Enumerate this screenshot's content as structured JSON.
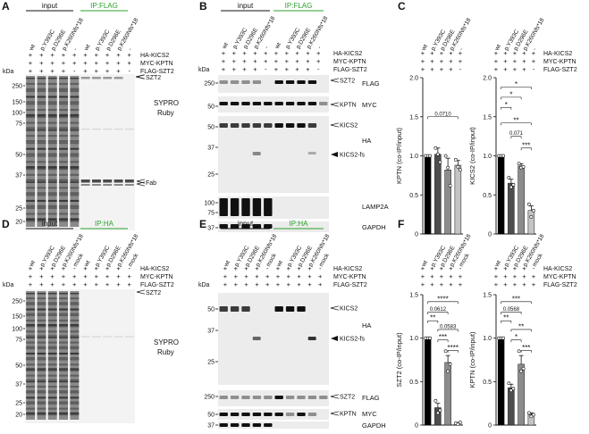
{
  "panels": {
    "A": {
      "letter": "A",
      "header_left": "input",
      "header_right": "IP:FLAG",
      "lanes": [
        "wt",
        "p.Y393C",
        "p.D296E",
        "p.K260Nfs*18",
        "-",
        "wt",
        "p.Y393C",
        "p.D296E",
        "p.K260Nfs*18",
        "-"
      ],
      "rows": [
        {
          "label": "HA-KICS2",
          "marks": [
            "+",
            "+",
            "+",
            "+",
            "+",
            "+",
            "+",
            "+",
            "+",
            "+"
          ]
        },
        {
          "label": "MYC-KPTN",
          "marks": [
            "+",
            "+",
            "+",
            "+",
            "+",
            "+",
            "+",
            "+",
            "+",
            "+"
          ]
        },
        {
          "label": "FLAG-SZT2",
          "marks": [
            "+",
            "+",
            "+",
            "+",
            "-",
            "+",
            "+",
            "+",
            "+",
            "-"
          ]
        }
      ],
      "kda": "kDa",
      "markers": [
        "250",
        "150",
        "100",
        "75",
        "50",
        "37",
        "25",
        "20"
      ],
      "band_labels": [
        "SZT2",
        "Fab"
      ],
      "stain": [
        "SYPRO",
        "Ruby"
      ]
    },
    "B": {
      "letter": "B",
      "header_left": "input",
      "header_right": "IP:FLAG",
      "lanes": [
        "wt",
        "p.Y393C",
        "p.D296E",
        "p.K260Nfs*18",
        "-",
        "wt",
        "p.Y393C",
        "p.D296E",
        "p.K260Nfs*18",
        "-"
      ],
      "rows": [
        {
          "label": "HA-KICS2",
          "marks": [
            "+",
            "+",
            "+",
            "+",
            "+",
            "+",
            "+",
            "+",
            "+",
            "+"
          ]
        },
        {
          "label": "MYC-KPTN",
          "marks": [
            "+",
            "+",
            "+",
            "+",
            "+",
            "+",
            "+",
            "+",
            "+",
            "+"
          ]
        },
        {
          "label": "FLAG-SZT2",
          "marks": [
            "+",
            "+",
            "+",
            "+",
            "-",
            "+",
            "+",
            "+",
            "+",
            "-"
          ]
        }
      ],
      "kda": "kDa",
      "blots": [
        {
          "antibody": "FLAG",
          "markers": [
            "250"
          ],
          "bands": [
            "SZT2"
          ]
        },
        {
          "antibody": "MYC",
          "markers": [
            "50"
          ],
          "bands": [
            "KPTN"
          ]
        },
        {
          "antibody": "HA",
          "markers": [
            "50",
            "37",
            "25"
          ],
          "bands": [
            "KICS2",
            "KICS2-fs"
          ]
        },
        {
          "antibody": "LAMP2A",
          "markers": [
            "100",
            "75"
          ],
          "bands": []
        },
        {
          "antibody": "GAPDH",
          "markers": [
            "37"
          ],
          "bands": []
        }
      ]
    },
    "C": {
      "letter": "C",
      "lanes": [
        "wt",
        "p.Y393C",
        "p.D296E",
        "p.K260Nfs*18",
        "-"
      ],
      "rows": [
        {
          "label": "HA-KICS2",
          "marks": [
            "+",
            "+",
            "+",
            "+",
            "+"
          ]
        },
        {
          "label": "MYC-KPTN",
          "marks": [
            "+",
            "+",
            "+",
            "+",
            "+"
          ]
        },
        {
          "label": "FLAG-SZT2",
          "marks": [
            "+",
            "+",
            "+",
            "+",
            "-"
          ]
        }
      ]
    },
    "D": {
      "letter": "D",
      "header_left": "input",
      "header_right": "IP:HA",
      "lanes": [
        "wt",
        "p.Y393C",
        "p.D296E",
        "p.K260Nfs*18",
        "mock",
        "wt",
        "p.Y393C",
        "p.D296E",
        "p.K260Nfs*18",
        "mock"
      ],
      "rows": [
        {
          "label": "HA-KICS2",
          "marks": [
            "+",
            "+",
            "+",
            "+",
            "-",
            "+",
            "+",
            "+",
            "+",
            "-"
          ]
        },
        {
          "label": "MYC-KPTN",
          "marks": [
            "+",
            "+",
            "+",
            "+",
            "+",
            "+",
            "+",
            "+",
            "+",
            "+"
          ]
        },
        {
          "label": "FLAG-SZT2",
          "marks": [
            "+",
            "+",
            "+",
            "+",
            "+",
            "+",
            "+",
            "+",
            "+",
            "+"
          ]
        }
      ],
      "kda": "kDa",
      "markers": [
        "250",
        "150",
        "100",
        "75",
        "50",
        "37",
        "25",
        "20"
      ],
      "band_labels": [
        "SZT2"
      ],
      "stain": [
        "SYPRO",
        "Ruby"
      ]
    },
    "E": {
      "letter": "E",
      "header_left": "input",
      "header_right": "IP:HA",
      "lanes": [
        "wt",
        "p.Y393C",
        "p.D296E",
        "p.K260Nfs*18",
        "mock",
        "wt",
        "p.Y393C",
        "p.D296E",
        "p.K260Nfs*18",
        "mock"
      ],
      "rows": [
        {
          "label": "HA-KICS2",
          "marks": [
            "+",
            "+",
            "+",
            "+",
            "-",
            "+",
            "+",
            "+",
            "+",
            "-"
          ]
        },
        {
          "label": "MYC-KPTN",
          "marks": [
            "+",
            "+",
            "+",
            "+",
            "+",
            "+",
            "+",
            "+",
            "+",
            "+"
          ]
        },
        {
          "label": "FLAG-SZT2",
          "marks": [
            "+",
            "+",
            "+",
            "+",
            "+",
            "+",
            "+",
            "+",
            "+",
            "+"
          ]
        }
      ],
      "kda": "kDa",
      "blots": [
        {
          "antibody": "HA",
          "markers": [
            "50",
            "37",
            "25"
          ],
          "bands": [
            "KICS2",
            "KICS2-fs"
          ]
        },
        {
          "antibody": "FLAG",
          "markers": [
            "250"
          ],
          "bands": [
            "SZT2"
          ]
        },
        {
          "antibody": "MYC",
          "markers": [
            "50"
          ],
          "bands": [
            "KPTN"
          ]
        },
        {
          "antibody": "GAPDH",
          "markers": [
            "37"
          ],
          "bands": []
        }
      ]
    },
    "F": {
      "letter": "F",
      "lanes": [
        "wt",
        "p.Y393C",
        "p.D296E",
        "p.K260Nfs*18",
        "mock"
      ],
      "rows": [
        {
          "label": "HA-KICS2",
          "marks": [
            "+",
            "+",
            "+",
            "+",
            "-"
          ]
        },
        {
          "label": "MYC-KPTN",
          "marks": [
            "+",
            "+",
            "+",
            "+",
            "+"
          ]
        },
        {
          "label": "FLAG-SZT2",
          "marks": [
            "+",
            "+",
            "+",
            "+",
            "+"
          ]
        }
      ]
    }
  },
  "chart_data": [
    {
      "type": "bar",
      "panel": "C",
      "categories": [
        "wt",
        "p.Y393C",
        "p.D296E",
        "p.K260Nfs*18"
      ],
      "values": [
        1.0,
        1.02,
        0.82,
        0.88
      ],
      "errors": [
        0.0,
        0.08,
        0.15,
        0.06
      ],
      "points": [
        [
          1.0,
          1.0,
          1.0
        ],
        [
          1.1,
          1.02,
          0.92
        ],
        [
          1.0,
          0.85,
          0.62
        ],
        [
          0.95,
          0.86,
          0.82
        ]
      ],
      "colors": [
        "#000000",
        "#4d4d4d",
        "#8c8c8c",
        "#c4c4c4"
      ],
      "ylabel": "KPTN (co-IP/input)",
      "yticks": [
        "0",
        "0.5",
        "1.0",
        "1.5",
        "2.0"
      ],
      "ylim": [
        0,
        2.0
      ],
      "annotations": [
        {
          "from": 0,
          "to": 3,
          "y": 1.5,
          "text": "0.0710"
        }
      ]
    },
    {
      "type": "bar",
      "panel": "C",
      "categories": [
        "wt",
        "p.Y393C",
        "p.D296E",
        "p.K260Nfs*18"
      ],
      "values": [
        1.0,
        0.65,
        0.87,
        0.3
      ],
      "errors": [
        0.0,
        0.05,
        0.03,
        0.06
      ],
      "points": [
        [
          1.0,
          1.0,
          1.0
        ],
        [
          0.72,
          0.6,
          0.63
        ],
        [
          0.9,
          0.85,
          0.86
        ],
        [
          0.38,
          0.22,
          0.3
        ]
      ],
      "colors": [
        "#000000",
        "#4d4d4d",
        "#8c8c8c",
        "#c4c4c4"
      ],
      "ylabel": "KICS2 (co-IP/input)",
      "yticks": [
        "0",
        "0.5",
        "1.0",
        "1.5",
        "2.0"
      ],
      "ylim": [
        0,
        2.0
      ],
      "annotations": [
        {
          "from": 0,
          "to": 3,
          "y": 1.88,
          "text": "*"
        },
        {
          "from": 0,
          "to": 2,
          "y": 1.75,
          "text": "*"
        },
        {
          "from": 0,
          "to": 1,
          "y": 1.62,
          "text": "*"
        },
        {
          "from": 0,
          "to": 3,
          "y": 1.42,
          "text": "**"
        },
        {
          "from": 1,
          "to": 2,
          "y": 1.25,
          "text": "0.071"
        },
        {
          "from": 2,
          "to": 3,
          "y": 1.1,
          "text": "***"
        }
      ]
    },
    {
      "type": "bar",
      "panel": "F",
      "categories": [
        "wt",
        "p.Y393C",
        "p.D296E",
        "p.K260Nfs*18"
      ],
      "values": [
        1.0,
        0.2,
        0.72,
        0.02
      ],
      "errors": [
        0.0,
        0.05,
        0.08,
        0.01
      ],
      "points": [
        [
          1.0,
          1.0,
          1.0
        ],
        [
          0.28,
          0.14,
          0.17
        ],
        [
          0.85,
          0.62,
          0.7
        ],
        [
          0.02,
          0.01,
          0.03
        ]
      ],
      "colors": [
        "#000000",
        "#4d4d4d",
        "#8c8c8c",
        "#c4c4c4"
      ],
      "ylabel": "SZT2 (co-IP/input)",
      "yticks": [
        "0",
        "0.5",
        "1.0",
        "1.5"
      ],
      "ylim": [
        0,
        1.5
      ],
      "annotations": [
        {
          "from": 0,
          "to": 3,
          "y": 1.42,
          "text": "****"
        },
        {
          "from": 0,
          "to": 2,
          "y": 1.3,
          "text": "0.0612"
        },
        {
          "from": 0,
          "to": 1,
          "y": 1.2,
          "text": "**"
        },
        {
          "from": 1,
          "to": 3,
          "y": 1.1,
          "text": "0.0583"
        },
        {
          "from": 1,
          "to": 2,
          "y": 0.98,
          "text": "***"
        },
        {
          "from": 2,
          "to": 3,
          "y": 0.86,
          "text": "****"
        }
      ]
    },
    {
      "type": "bar",
      "panel": "F",
      "categories": [
        "wt",
        "p.Y393C",
        "p.D296E",
        "p.K260Nfs*18"
      ],
      "values": [
        1.0,
        0.43,
        0.7,
        0.12
      ],
      "errors": [
        0.0,
        0.04,
        0.1,
        0.02
      ],
      "points": [
        [
          1.0,
          1.0,
          1.0
        ],
        [
          0.48,
          0.4,
          0.42
        ],
        [
          0.85,
          0.62,
          0.65
        ],
        [
          0.14,
          0.1,
          0.12
        ]
      ],
      "colors": [
        "#000000",
        "#4d4d4d",
        "#8c8c8c",
        "#c4c4c4"
      ],
      "ylabel": "KPTN (co-IP/input)",
      "yticks": [
        "0",
        "0.5",
        "1.0",
        "1.5"
      ],
      "ylim": [
        0,
        1.5
      ],
      "annotations": [
        {
          "from": 0,
          "to": 3,
          "y": 1.42,
          "text": "***"
        },
        {
          "from": 0,
          "to": 2,
          "y": 1.3,
          "text": "0.0568"
        },
        {
          "from": 0,
          "to": 1,
          "y": 1.2,
          "text": "**"
        },
        {
          "from": 1,
          "to": 3,
          "y": 1.1,
          "text": "**"
        },
        {
          "from": 1,
          "to": 2,
          "y": 0.98,
          "text": "*"
        },
        {
          "from": 2,
          "to": 3,
          "y": 0.86,
          "text": "***"
        }
      ]
    }
  ]
}
